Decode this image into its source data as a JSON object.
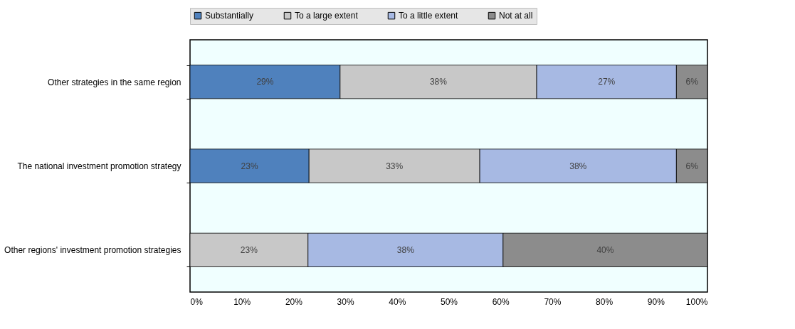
{
  "chart_data": {
    "type": "bar",
    "orientation": "horizontal",
    "stacked": true,
    "categories": [
      "Other strategies in the same region",
      "The national investment promotion strategy",
      "Other regions' investment promotion strategies"
    ],
    "series": [
      {
        "name": "Substantially",
        "color": "#4f81bd",
        "values": [
          29,
          23,
          null
        ],
        "value_labels": [
          "29%",
          "23%",
          null
        ]
      },
      {
        "name": "To a large extent",
        "color": "#c8c8c8",
        "values": [
          38,
          33,
          22.8
        ],
        "value_labels": [
          "38%",
          "33%",
          "23%"
        ]
      },
      {
        "name": "To a little extent",
        "color": "#a7b9e3",
        "values": [
          27,
          38,
          37.7
        ],
        "value_labels": [
          "27%",
          "38%",
          "38%"
        ]
      },
      {
        "name": "Not at all",
        "color": "#8c8c8c",
        "values": [
          6,
          6,
          39.5
        ],
        "value_labels": [
          "6%",
          "6%",
          "40%"
        ]
      }
    ],
    "xlim": [
      0,
      100
    ],
    "xticks": [
      {
        "value": 0,
        "label": "0%"
      },
      {
        "value": 10,
        "label": "10%"
      },
      {
        "value": 20,
        "label": "20%"
      },
      {
        "value": 30,
        "label": "30%"
      },
      {
        "value": 40,
        "label": "40%"
      },
      {
        "value": 50,
        "label": "50%"
      },
      {
        "value": 60,
        "label": "60%"
      },
      {
        "value": 70,
        "label": "70%"
      },
      {
        "value": 80,
        "label": "80%"
      },
      {
        "value": 90,
        "label": "90%"
      },
      {
        "value": 100,
        "label": "100%"
      }
    ],
    "grid": false,
    "legend": "top"
  }
}
